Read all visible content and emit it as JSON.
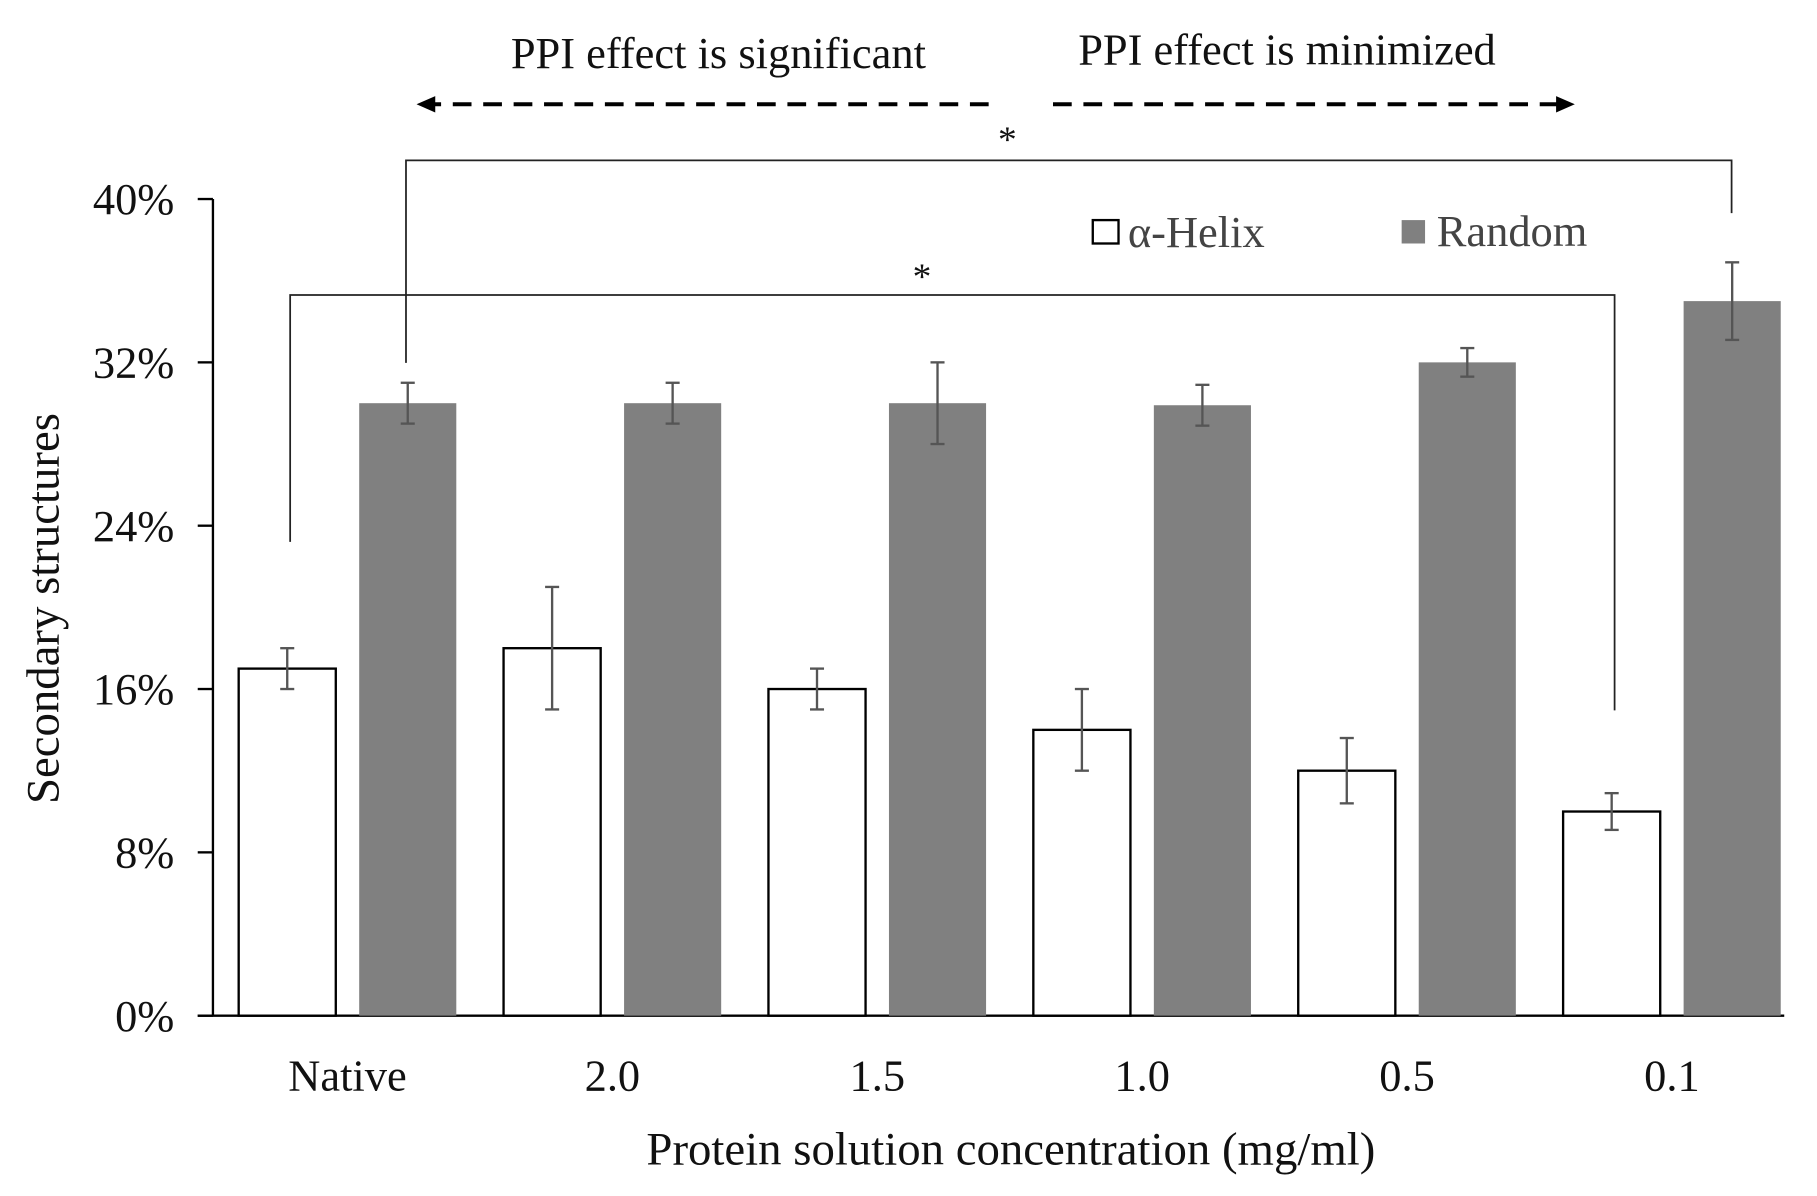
{
  "chart_data": {
    "type": "bar",
    "title": "",
    "xlabel": "Protein solution concentration (mg/ml)",
    "ylabel": "Secondary structures",
    "ylim": [
      0,
      40
    ],
    "yticks": [
      "0%",
      "8%",
      "16%",
      "24%",
      "32%",
      "40%"
    ],
    "ytick_values": [
      0,
      8,
      16,
      24,
      32,
      40
    ],
    "categories": [
      "Native",
      "2.0",
      "1.5",
      "1.0",
      "0.5",
      "0.1"
    ],
    "series": [
      {
        "name": "α-Helix",
        "color": "#ffffff",
        "values": [
          17,
          18,
          16,
          14,
          12,
          10
        ],
        "errors": [
          1,
          3,
          1,
          2,
          1.6,
          0.9
        ]
      },
      {
        "name": "Random",
        "color": "#808080",
        "values": [
          30,
          30,
          30,
          29.9,
          32,
          35
        ],
        "errors": [
          1,
          1,
          2,
          1,
          0.7,
          1.9
        ]
      }
    ],
    "legend_position": "top-right",
    "annotations": {
      "left_arrow_label": "PPI effect is significant",
      "right_arrow_label": "PPI effect is minimized",
      "sig_marker_top": "*",
      "sig_marker_bottom": "*"
    }
  }
}
